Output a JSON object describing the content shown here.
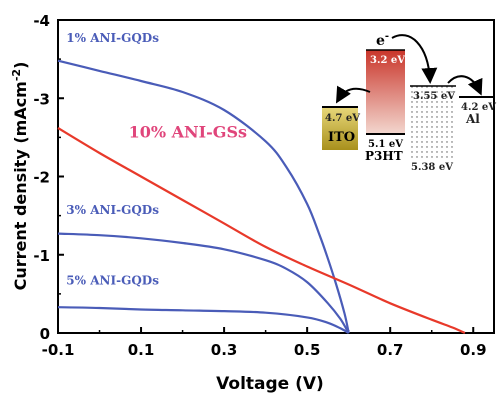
{
  "chart_data": {
    "type": "line",
    "xlabel": "Voltage",
    "xlabel_unit": "(V)",
    "ylabel": "Current density (mAcm",
    "ylabel_sup": "-2",
    "ylabel_close": ")",
    "xlim": [
      -0.1,
      0.95
    ],
    "ylim": [
      0,
      -4
    ],
    "x_ticks": [
      -0.1,
      0.1,
      0.3,
      0.5,
      0.7,
      0.9
    ],
    "x_tick_labels": [
      "-0.1",
      "0.1",
      "0.3",
      "0.5",
      "0.7",
      "0.9"
    ],
    "y_ticks": [
      0,
      -1,
      -2,
      -3,
      -4
    ],
    "y_tick_labels": [
      "0",
      "-1",
      "-2",
      "-3",
      "-4"
    ],
    "series": [
      {
        "name": "1% ANI-GQDs",
        "color": "#4a5cb8",
        "x": [
          -0.1,
          0.0,
          0.1,
          0.2,
          0.3,
          0.4,
          0.45,
          0.5,
          0.53,
          0.55,
          0.57,
          0.59,
          0.6
        ],
        "y": [
          -3.48,
          -3.35,
          -3.22,
          -3.08,
          -2.85,
          -2.45,
          -2.12,
          -1.65,
          -1.25,
          -0.95,
          -0.62,
          -0.25,
          0.0
        ]
      },
      {
        "name": "3% ANI-GQDs",
        "color": "#4a5cb8",
        "x": [
          -0.1,
          0.0,
          0.1,
          0.2,
          0.3,
          0.4,
          0.45,
          0.5,
          0.55,
          0.58,
          0.6
        ],
        "y": [
          -1.27,
          -1.25,
          -1.21,
          -1.15,
          -1.07,
          -0.93,
          -0.82,
          -0.65,
          -0.38,
          -0.18,
          0.0
        ]
      },
      {
        "name": "5% ANI-GQDs",
        "color": "#4a5cb8",
        "x": [
          -0.1,
          0.0,
          0.1,
          0.2,
          0.3,
          0.4,
          0.5,
          0.55,
          0.58,
          0.6
        ],
        "y": [
          -0.33,
          -0.32,
          -0.3,
          -0.29,
          -0.28,
          -0.26,
          -0.2,
          -0.13,
          -0.06,
          0.0
        ]
      },
      {
        "name": "10% ANI-GSs",
        "color": "#e8392a",
        "x": [
          -0.1,
          0.0,
          0.1,
          0.2,
          0.3,
          0.4,
          0.5,
          0.6,
          0.7,
          0.8,
          0.85,
          0.88
        ],
        "y": [
          -2.62,
          -2.3,
          -2.0,
          -1.7,
          -1.4,
          -1.1,
          -0.85,
          -0.62,
          -0.38,
          -0.17,
          -0.07,
          0.0
        ]
      }
    ],
    "annotations": [
      {
        "text": "1% ANI-GQDs",
        "x": -0.08,
        "y": -3.72,
        "color": "#4a5cb8"
      },
      {
        "text": "10% ANI-GSs",
        "x": 0.07,
        "y": -2.5,
        "color": "#e0457b"
      },
      {
        "text": "3% ANI-GQDs",
        "x": -0.08,
        "y": -1.52,
        "color": "#4a5cb8"
      },
      {
        "text": "5% ANI-GQDs",
        "x": -0.08,
        "y": -0.62,
        "color": "#4a5cb8"
      }
    ],
    "inset": {
      "electron": "e",
      "electron_sup": "-",
      "ito_level": "4.7 eV",
      "ito_label": "ITO",
      "p3ht_lumo": "3.2 eV",
      "p3ht_homo": "5.1 eV",
      "p3ht_label": "P3HT",
      "gqd_lumo": "3.55 eV",
      "gqd_homo": "5.38 eV",
      "al_level": "4.2 eV",
      "al_label": "Al"
    }
  }
}
